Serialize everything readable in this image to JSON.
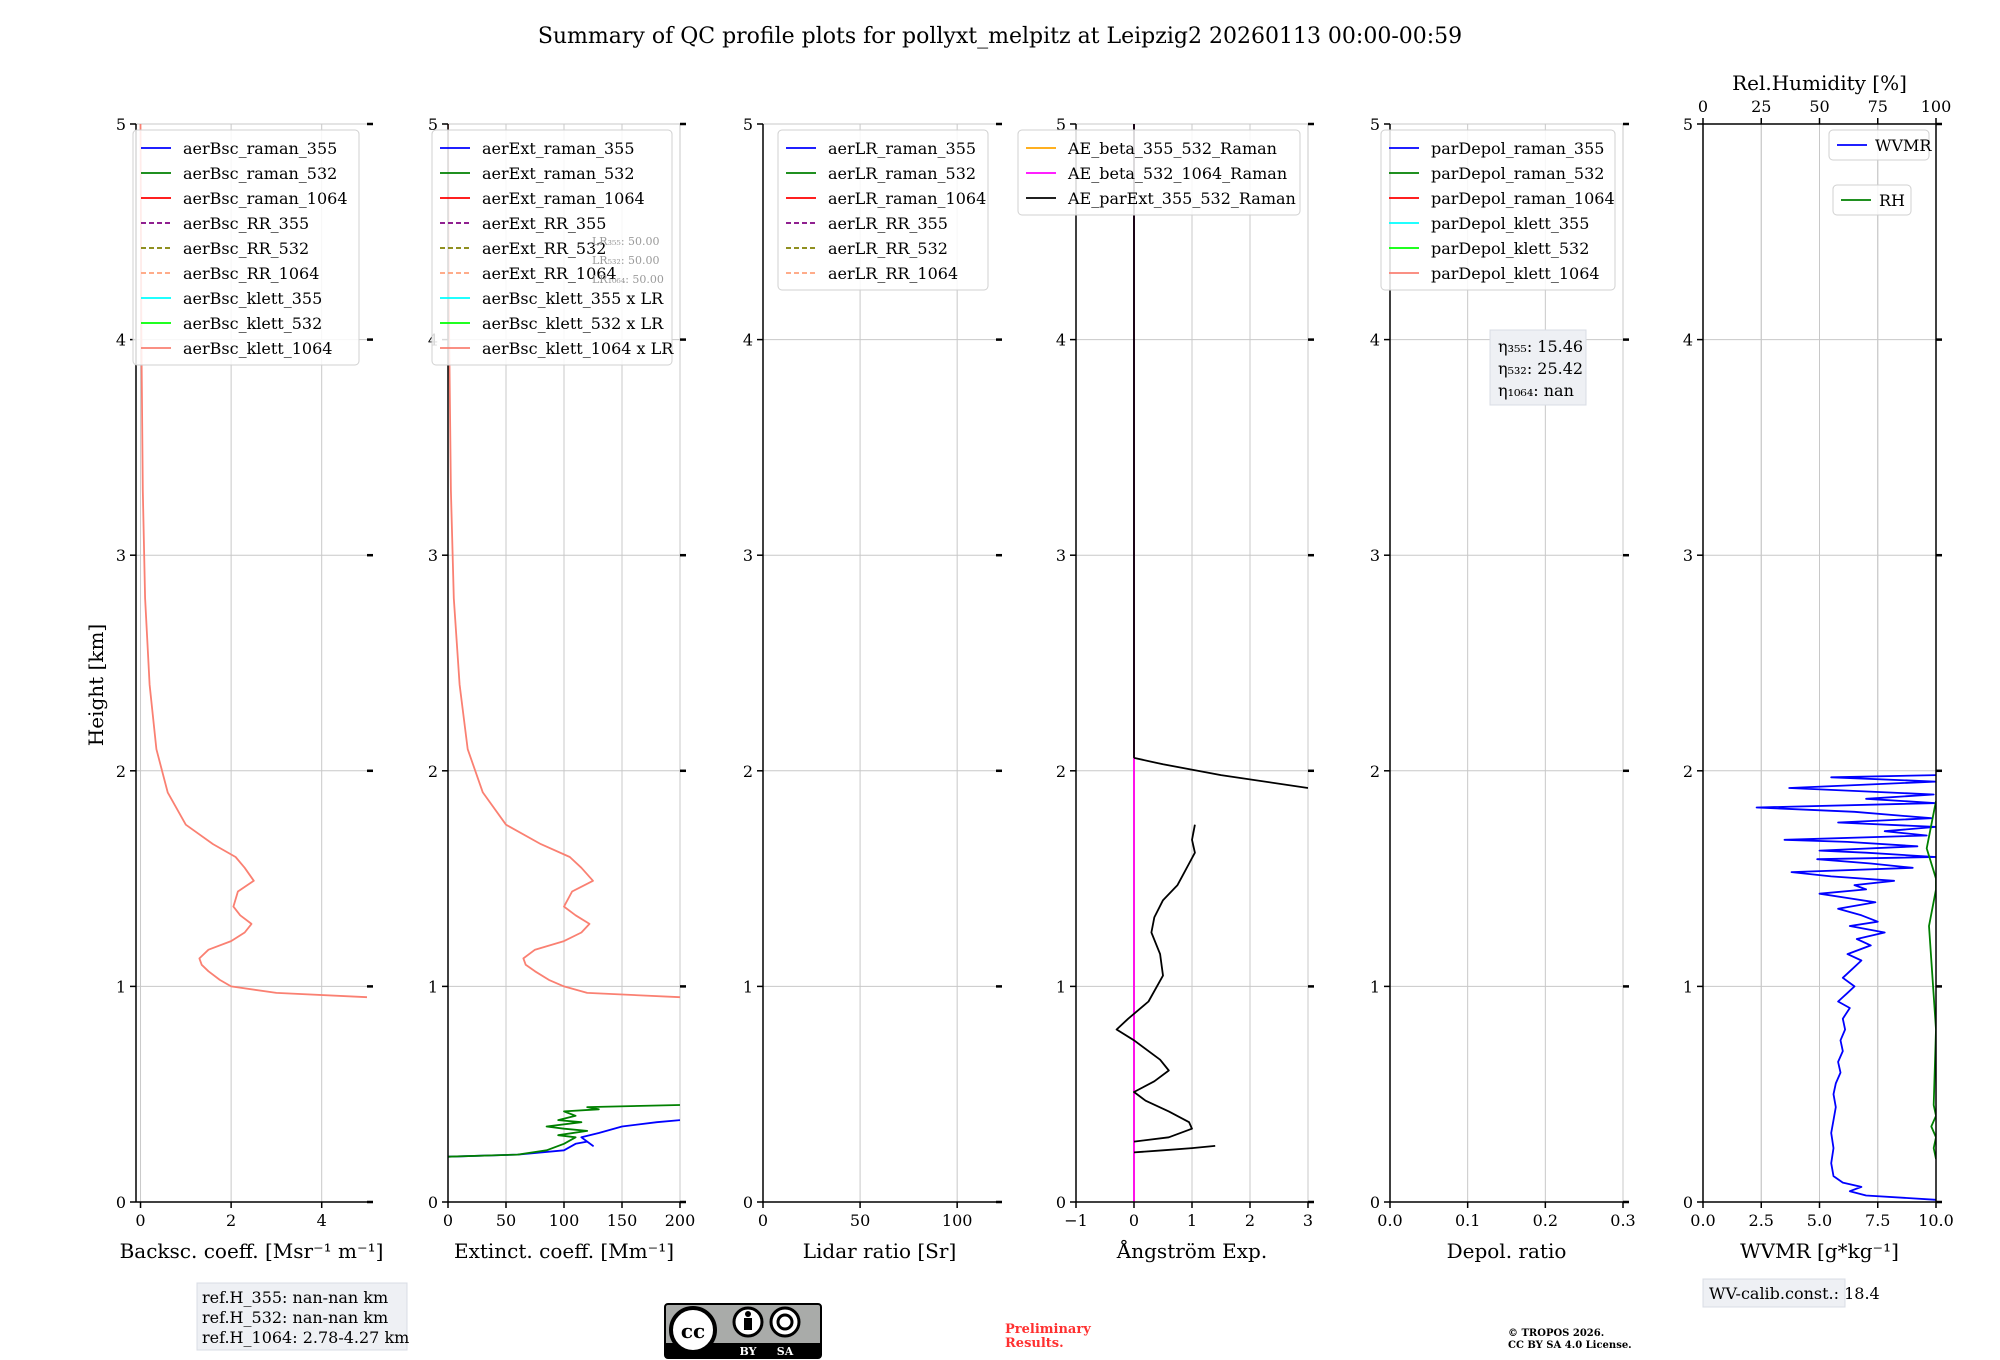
{
  "figure": {
    "title": "Summary of QC profile plots for pollyxt_melpitz at Leipzig2 20260113 00:00-00:59",
    "ylabel": "Height [km]",
    "ref_heights": [
      "ref.H_355: nan-nan km",
      "ref.H_532: nan-nan km",
      "ref.H_1064: 2.78-4.27 km"
    ],
    "lr_values": [
      "LR₃₅₅: 50.00",
      "LR₅₃₂: 50.00",
      "LR₁₀₆₄: 50.00"
    ],
    "eta_values": [
      "η₃₅₅: 15.46",
      "η₅₃₂: 25.42",
      "η₁₀₆₄: nan"
    ],
    "wv_calib": "WV-calib.const.: 18.4",
    "license_badge": {
      "cc": "cc",
      "by": "BY",
      "sa": "SA"
    },
    "preliminary": [
      "Preliminary",
      "Results."
    ],
    "copyright": [
      "© TROPOS 2026.",
      "CC BY SA 4.0 License."
    ],
    "colors": {
      "blue": "#0000ff",
      "green": "#008000",
      "red": "#ff0000",
      "purple": "#800080",
      "olive": "#808000",
      "lightsalmon": "#ffa07a",
      "cyan": "#00ffff",
      "lime": "#00ff00",
      "salmon": "#fa8072",
      "orange": "#ffa500",
      "magenta": "#ff00ff",
      "black": "#000000"
    }
  },
  "chart_data": [
    {
      "type": "line",
      "id": "bsc",
      "xlabel": "Backsc. coeff. [Msr⁻¹ m⁻¹]",
      "xlim": [
        -0.1,
        5
      ],
      "ylim": [
        0,
        5
      ],
      "xticks": [
        0,
        2,
        4
      ],
      "yticks": [
        0,
        1,
        2,
        3,
        4,
        5
      ],
      "legend": "top-right",
      "series": [
        {
          "name": "aerBsc_raman_355",
          "color": "blue",
          "dash": false,
          "x": [],
          "y": []
        },
        {
          "name": "aerBsc_raman_532",
          "color": "green",
          "dash": false,
          "x": [],
          "y": []
        },
        {
          "name": "aerBsc_raman_1064",
          "color": "red",
          "dash": false,
          "x": [],
          "y": []
        },
        {
          "name": "aerBsc_RR_355",
          "color": "purple",
          "dash": true,
          "x": [],
          "y": []
        },
        {
          "name": "aerBsc_RR_532",
          "color": "olive",
          "dash": true,
          "x": [],
          "y": []
        },
        {
          "name": "aerBsc_RR_1064",
          "color": "lightsalmon",
          "dash": true,
          "x": [],
          "y": []
        },
        {
          "name": "aerBsc_klett_355",
          "color": "cyan",
          "dash": false,
          "x": [],
          "y": []
        },
        {
          "name": "aerBsc_klett_532",
          "color": "lime",
          "dash": false,
          "x": [],
          "y": []
        },
        {
          "name": "aerBsc_klett_1064",
          "color": "salmon",
          "dash": false,
          "x": [
            5.0,
            3.0,
            2.0,
            1.75,
            1.5,
            1.35,
            1.3,
            1.5,
            2.0,
            2.3,
            2.45,
            2.2,
            2.05,
            2.15,
            2.5,
            2.3,
            2.1,
            1.6,
            1.0,
            0.6,
            0.35,
            0.2,
            0.1,
            0.05,
            0.02,
            0.0
          ],
          "y": [
            0.95,
            0.97,
            1.0,
            1.03,
            1.07,
            1.1,
            1.13,
            1.17,
            1.21,
            1.25,
            1.29,
            1.33,
            1.37,
            1.44,
            1.49,
            1.55,
            1.6,
            1.66,
            1.75,
            1.9,
            2.1,
            2.4,
            2.8,
            3.3,
            4.0,
            5.0
          ]
        }
      ]
    },
    {
      "type": "line",
      "id": "ext",
      "xlabel": "Extinct. coeff. [Mm⁻¹]",
      "xlim": [
        0,
        200
      ],
      "ylim": [
        0,
        5
      ],
      "xticks": [
        0,
        50,
        100,
        150,
        200
      ],
      "yticks": [
        0,
        1,
        2,
        3,
        4,
        5
      ],
      "legend": "top-right",
      "series": [
        {
          "name": "aerExt_raman_355",
          "color": "blue",
          "dash": false,
          "x": [
            0,
            60,
            100,
            110,
            120,
            125,
            115,
            130,
            150,
            180,
            200
          ],
          "y": [
            0.21,
            0.22,
            0.24,
            0.27,
            0.28,
            0.26,
            0.3,
            0.32,
            0.35,
            0.37,
            0.38
          ]
        },
        {
          "name": "aerExt_raman_532",
          "color": "green",
          "dash": false,
          "x": [
            0,
            60,
            85,
            100,
            110,
            95,
            120,
            100,
            85,
            115,
            95,
            110,
            100,
            130,
            120,
            200
          ],
          "y": [
            0.21,
            0.22,
            0.24,
            0.27,
            0.3,
            0.31,
            0.33,
            0.34,
            0.35,
            0.37,
            0.38,
            0.4,
            0.42,
            0.43,
            0.44,
            0.45
          ]
        },
        {
          "name": "aerExt_raman_1064",
          "color": "red",
          "dash": false,
          "x": [],
          "y": []
        },
        {
          "name": "aerExt_RR_355",
          "color": "purple",
          "dash": true,
          "x": [],
          "y": []
        },
        {
          "name": "aerExt_RR_532",
          "color": "olive",
          "dash": true,
          "x": [],
          "y": []
        },
        {
          "name": "aerExt_RR_1064",
          "color": "lightsalmon",
          "dash": true,
          "x": [],
          "y": []
        },
        {
          "name": "aerBsc_klett_355 x LR",
          "color": "cyan",
          "dash": false,
          "x": [],
          "y": []
        },
        {
          "name": "aerBsc_klett_532 x LR",
          "color": "lime",
          "dash": false,
          "x": [],
          "y": []
        },
        {
          "name": "aerBsc_klett_1064 x LR",
          "color": "salmon",
          "dash": false,
          "x": [
            200,
            120,
            100,
            87,
            75,
            67,
            65,
            75,
            100,
            115,
            122,
            110,
            100,
            107,
            125,
            115,
            105,
            80,
            50,
            30,
            17,
            10,
            5,
            2.5,
            1,
            0
          ],
          "y": [
            0.95,
            0.97,
            1.0,
            1.03,
            1.07,
            1.1,
            1.13,
            1.17,
            1.21,
            1.25,
            1.29,
            1.33,
            1.37,
            1.44,
            1.49,
            1.55,
            1.6,
            1.66,
            1.75,
            1.9,
            2.1,
            2.4,
            2.8,
            3.3,
            4.0,
            5.0
          ]
        }
      ]
    },
    {
      "type": "line",
      "id": "lr",
      "xlabel": "Lidar ratio [Sr]",
      "xlim": [
        0,
        120
      ],
      "ylim": [
        0,
        5
      ],
      "xticks": [
        0,
        50,
        100
      ],
      "yticks": [
        0,
        1,
        2,
        3,
        4,
        5
      ],
      "legend": "top-right",
      "series": [
        {
          "name": "aerLR_raman_355",
          "color": "blue",
          "dash": false,
          "x": [],
          "y": []
        },
        {
          "name": "aerLR_raman_532",
          "color": "green",
          "dash": false,
          "x": [],
          "y": []
        },
        {
          "name": "aerLR_raman_1064",
          "color": "red",
          "dash": false,
          "x": [],
          "y": []
        },
        {
          "name": "aerLR_RR_355",
          "color": "purple",
          "dash": true,
          "x": [],
          "y": []
        },
        {
          "name": "aerLR_RR_532",
          "color": "olive",
          "dash": true,
          "x": [],
          "y": []
        },
        {
          "name": "aerLR_RR_1064",
          "color": "lightsalmon",
          "dash": true,
          "x": [],
          "y": []
        }
      ]
    },
    {
      "type": "line",
      "id": "ae",
      "xlabel": "Ångström Exp.",
      "xlim": [
        -1,
        3
      ],
      "ylim": [
        0,
        5
      ],
      "xticks": [
        -1,
        0,
        1,
        2,
        3
      ],
      "yticks": [
        0,
        1,
        2,
        3,
        4,
        5
      ],
      "legend": "top-right",
      "series": [
        {
          "name": "AE_beta_355_532_Raman",
          "color": "orange",
          "dash": false,
          "x": [
            0,
            0
          ],
          "y": [
            0,
            5
          ]
        },
        {
          "name": "AE_beta_532_1064_Raman",
          "color": "magenta",
          "dash": false,
          "x": [
            0,
            0
          ],
          "y": [
            0,
            5
          ]
        },
        {
          "name": "AE_parExt_355_532_Raman",
          "color": "black",
          "dash": false,
          "segments": [
            {
              "x": [
                0,
                0
              ],
              "y": [
                2.06,
                5
              ]
            },
            {
              "x": [
                0,
                0.5,
                1.5,
                3.0
              ],
              "y": [
                2.06,
                2.03,
                1.98,
                1.92
              ]
            },
            {
              "x": [
                0,
                0.5,
                1.0,
                1.4
              ],
              "y": [
                0.23,
                0.24,
                0.25,
                0.26
              ]
            },
            {
              "x": [
                0,
                0.6,
                1.0,
                0.95,
                0.6,
                0.2,
                0,
                0.35,
                0.6,
                0.45,
                0,
                -0.3,
                -0.1,
                0.25,
                0.5,
                0.45,
                0.3,
                0.35,
                0.5,
                0.75,
                0.85,
                0.95,
                1.05,
                1.0,
                1.05
              ],
              "y": [
                0.28,
                0.3,
                0.34,
                0.37,
                0.42,
                0.47,
                0.51,
                0.56,
                0.61,
                0.66,
                0.75,
                0.8,
                0.85,
                0.93,
                1.05,
                1.15,
                1.25,
                1.32,
                1.4,
                1.47,
                1.52,
                1.57,
                1.62,
                1.68,
                1.75
              ]
            }
          ]
        }
      ]
    },
    {
      "type": "line",
      "id": "depol",
      "xlabel": "Depol. ratio",
      "xlim": [
        0,
        0.3
      ],
      "ylim": [
        0,
        5
      ],
      "xticks": [
        0.0,
        0.1,
        0.2,
        0.3
      ],
      "xticklabels": [
        "0.0",
        "0.1",
        "0.2",
        "0.3"
      ],
      "yticks": [
        0,
        1,
        2,
        3,
        4,
        5
      ],
      "legend": "top-right",
      "series": [
        {
          "name": "parDepol_raman_355",
          "color": "blue",
          "dash": false,
          "x": [],
          "y": []
        },
        {
          "name": "parDepol_raman_532",
          "color": "green",
          "dash": false,
          "x": [],
          "y": []
        },
        {
          "name": "parDepol_raman_1064",
          "color": "red",
          "dash": false,
          "x": [],
          "y": []
        },
        {
          "name": "parDepol_klett_355",
          "color": "cyan",
          "dash": false,
          "x": [],
          "y": []
        },
        {
          "name": "parDepol_klett_532",
          "color": "lime",
          "dash": false,
          "x": [],
          "y": []
        },
        {
          "name": "parDepol_klett_1064",
          "color": "salmon",
          "dash": false,
          "x": [],
          "y": []
        }
      ]
    },
    {
      "type": "line",
      "id": "wv",
      "xlabel": "WVMR [g*kg⁻¹]",
      "xlim": [
        0,
        10
      ],
      "ylim": [
        0,
        5
      ],
      "xticks": [
        0.0,
        2.5,
        5.0,
        7.5,
        10.0
      ],
      "xticklabels": [
        "0.0",
        "2.5",
        "5.0",
        "7.5",
        "10.0"
      ],
      "yticks": [
        0,
        1,
        2,
        3,
        4,
        5
      ],
      "top_axis": {
        "label": "Rel.Humidity [%]",
        "lim": [
          0,
          100
        ],
        "ticks": [
          0,
          25,
          50,
          75,
          100
        ]
      },
      "legend": "top-right",
      "series": [
        {
          "name": "WVMR",
          "color": "blue",
          "dash": false,
          "x": [
            10,
            7,
            6.3,
            6.8,
            6.0,
            5.6,
            5.5,
            5.6,
            5.5,
            5.6,
            5.7,
            5.6,
            5.7,
            5.9,
            5.8,
            6.0,
            5.9,
            6.1,
            6.0,
            6.3,
            5.8,
            6.2,
            6.5,
            6.0,
            6.4,
            6.8,
            6.2,
            7.2,
            6.6,
            7.8,
            6.3,
            7.5,
            6.8,
            5.8,
            7.4,
            6.2,
            5.0,
            7.0,
            6.5,
            8.2,
            5.5,
            3.8,
            9.0,
            7.2,
            4.9,
            10,
            7.0,
            5.0,
            9.2,
            6.2,
            3.5,
            9.6,
            7.8,
            10,
            5.8,
            9.8,
            6.5,
            2.3,
            10,
            7.0,
            9.9,
            3.7,
            10,
            5.5,
            10
          ],
          "y": [
            0.01,
            0.03,
            0.05,
            0.07,
            0.09,
            0.12,
            0.18,
            0.25,
            0.32,
            0.38,
            0.44,
            0.5,
            0.55,
            0.6,
            0.65,
            0.7,
            0.75,
            0.8,
            0.85,
            0.9,
            0.93,
            0.97,
            1.0,
            1.04,
            1.08,
            1.12,
            1.15,
            1.19,
            1.22,
            1.25,
            1.28,
            1.3,
            1.33,
            1.36,
            1.39,
            1.41,
            1.43,
            1.45,
            1.47,
            1.49,
            1.51,
            1.53,
            1.55,
            1.57,
            1.59,
            1.6,
            1.62,
            1.63,
            1.65,
            1.67,
            1.68,
            1.7,
            1.72,
            1.74,
            1.76,
            1.78,
            1.81,
            1.83,
            1.85,
            1.87,
            1.89,
            1.92,
            1.95,
            1.97,
            1.98
          ]
        },
        {
          "name": "RH",
          "color": "green",
          "dash": false,
          "axis": "top",
          "x": [
            100,
            99,
            100,
            98,
            100,
            99,
            100,
            97,
            100,
            100,
            96,
            100
          ],
          "y": [
            0.2,
            0.25,
            0.3,
            0.35,
            0.4,
            0.45,
            0.8,
            1.28,
            1.45,
            1.5,
            1.64,
            1.86
          ]
        }
      ]
    }
  ]
}
